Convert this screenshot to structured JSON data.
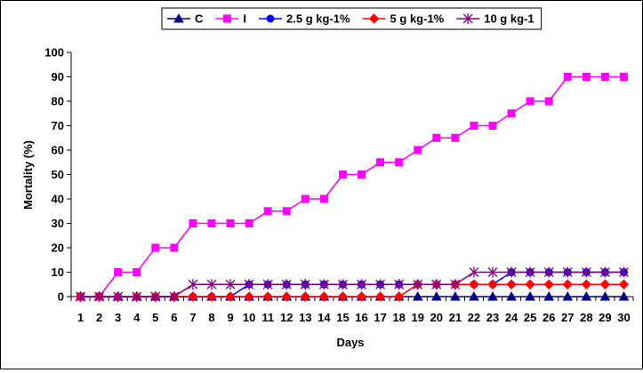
{
  "chart_data": {
    "type": "line",
    "xlabel": "Days",
    "ylabel": "Mortality (%)",
    "ylim": [
      0,
      100
    ],
    "yticks": [
      0,
      10,
      20,
      30,
      40,
      50,
      60,
      70,
      80,
      90,
      100
    ],
    "categories": [
      "1",
      "2",
      "3",
      "4",
      "5",
      "6",
      "7",
      "8",
      "9",
      "10",
      "11",
      "12",
      "13",
      "14",
      "15",
      "16",
      "17",
      "18",
      "19",
      "20",
      "21",
      "22",
      "23",
      "24",
      "25",
      "26",
      "27",
      "28",
      "29",
      "30"
    ],
    "legend_position": "top",
    "grid": false,
    "series": [
      {
        "name": "C",
        "color": "#000080",
        "marker": "triangle",
        "values": [
          0,
          0,
          0,
          0,
          0,
          0,
          0,
          0,
          0,
          0,
          0,
          0,
          0,
          0,
          0,
          0,
          0,
          0,
          0,
          0,
          0,
          0,
          0,
          0,
          0,
          0,
          0,
          0,
          0,
          0
        ]
      },
      {
        "name": "I",
        "color": "#FF00FF",
        "marker": "square",
        "values": [
          0,
          0,
          10,
          10,
          20,
          20,
          30,
          30,
          30,
          30,
          35,
          35,
          40,
          40,
          50,
          50,
          55,
          55,
          60,
          65,
          65,
          70,
          70,
          75,
          80,
          80,
          90,
          90,
          90,
          90
        ]
      },
      {
        "name": "2.5 g kg-1%",
        "color": "#0000FF",
        "marker": "circle",
        "values": [
          0,
          0,
          0,
          0,
          0,
          0,
          0,
          0,
          0,
          5,
          5,
          5,
          5,
          5,
          5,
          5,
          5,
          5,
          5,
          5,
          5,
          5,
          5,
          10,
          10,
          10,
          10,
          10,
          10,
          10
        ]
      },
      {
        "name": "5 g kg-1%",
        "color": "#FF0000",
        "marker": "diamond",
        "values": [
          0,
          0,
          0,
          0,
          0,
          0,
          0,
          0,
          0,
          0,
          0,
          0,
          0,
          0,
          0,
          0,
          0,
          0,
          5,
          5,
          5,
          5,
          5,
          5,
          5,
          5,
          5,
          5,
          5,
          5
        ]
      },
      {
        "name": "10 g kg-1",
        "color": "#800080",
        "marker": "star",
        "values": [
          0,
          0,
          0,
          0,
          0,
          0,
          5,
          5,
          5,
          5,
          5,
          5,
          5,
          5,
          5,
          5,
          5,
          5,
          5,
          5,
          5,
          10,
          10,
          10,
          10,
          10,
          10,
          10,
          10,
          10
        ]
      }
    ]
  }
}
